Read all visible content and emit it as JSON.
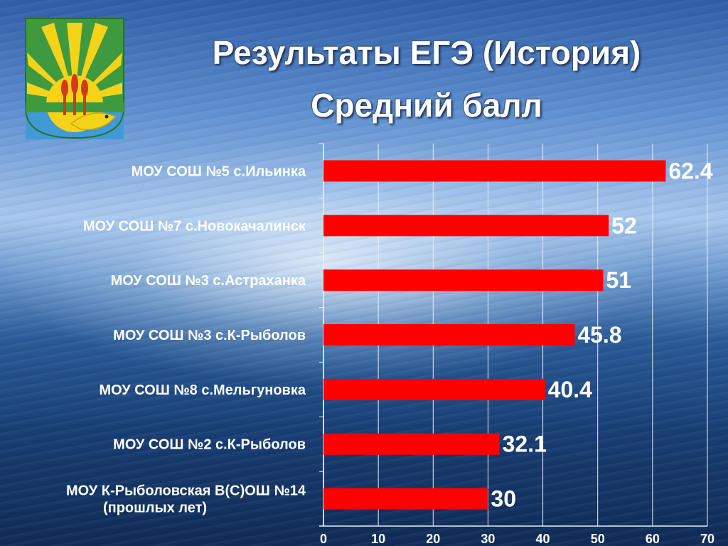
{
  "header": {
    "title_line1": "Результаты ЕГЭ (История)",
    "title_line2": "Средний балл"
  },
  "emblem": {
    "icon": "coat-of-arms-icon"
  },
  "chart_data": {
    "type": "bar",
    "orientation": "horizontal",
    "categories": [
      [
        "МОУ СОШ №5 с.Ильинка"
      ],
      [
        "МОУ СОШ №7 с.Новокачалинск"
      ],
      [
        "МОУ СОШ №3 с.Астраханка"
      ],
      [
        "МОУ СОШ №3 с.К-Рыболов"
      ],
      [
        "МОУ СОШ №8 с.Мельгуновка"
      ],
      [
        "МОУ СОШ №2 с.К-Рыболов"
      ],
      [
        "МОУ К-Рыболовская В(С)ОШ №14",
        "(прошлых лет)"
      ]
    ],
    "values": [
      62.4,
      52,
      51,
      45.8,
      40.4,
      32.1,
      30
    ],
    "value_labels": [
      "62.4",
      "52",
      "51",
      "45.8",
      "40.4",
      "32.1",
      "30"
    ],
    "xlim": [
      0,
      70
    ],
    "xticks": [
      0,
      10,
      20,
      30,
      40,
      50,
      60,
      70
    ],
    "grid": "vertical",
    "bar_color": "#ff0000",
    "grid_color": "#e8eef6"
  }
}
